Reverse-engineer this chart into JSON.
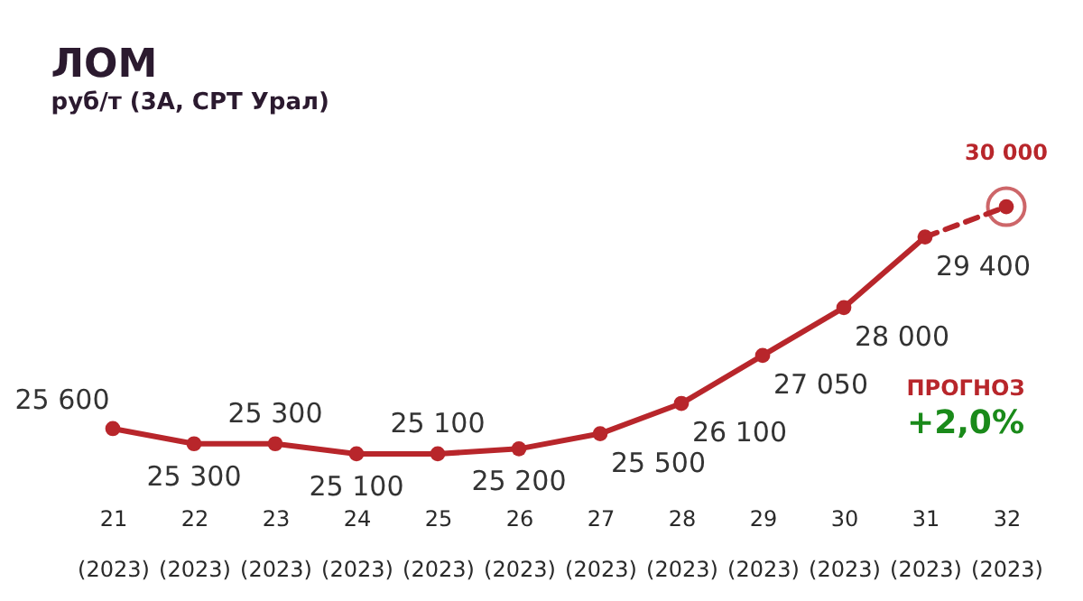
{
  "chart_data": {
    "type": "line",
    "title": "ЛОМ",
    "subtitle": "руб/т (3А, СРТ Урал)",
    "categories": [
      "21\n(2023)",
      "22\n(2023)",
      "23\n(2023)",
      "24\n(2023)",
      "25\n(2023)",
      "26\n(2023)",
      "27\n(2023)",
      "28\n(2023)",
      "29\n(2023)",
      "30\n(2023)",
      "31\n(2023)",
      "32\n(2023)"
    ],
    "series": [
      {
        "color": "#b8262b",
        "line_style": "solid",
        "values": [
          25600,
          25300,
          25300,
          25100,
          25100,
          25200,
          25500,
          26100,
          27050,
          28000,
          29400,
          null
        ],
        "value_labels": [
          "25 600",
          "25 300",
          "25 300",
          "25 100",
          "25 100",
          "25 200",
          "25 500",
          "26 100",
          "27 050",
          "28 000",
          "29 400",
          null
        ]
      },
      {
        "color": "#b8262b",
        "line_style": "dashed",
        "values": [
          null,
          null,
          null,
          null,
          null,
          null,
          null,
          null,
          null,
          null,
          29400,
          30000
        ],
        "value_labels": [
          null,
          null,
          null,
          null,
          null,
          null,
          null,
          null,
          null,
          null,
          null,
          "30 000"
        ]
      }
    ],
    "marker": "circle",
    "grid": false,
    "annotations": [
      "ПРОГНОЗ",
      "+2,0%"
    ]
  }
}
